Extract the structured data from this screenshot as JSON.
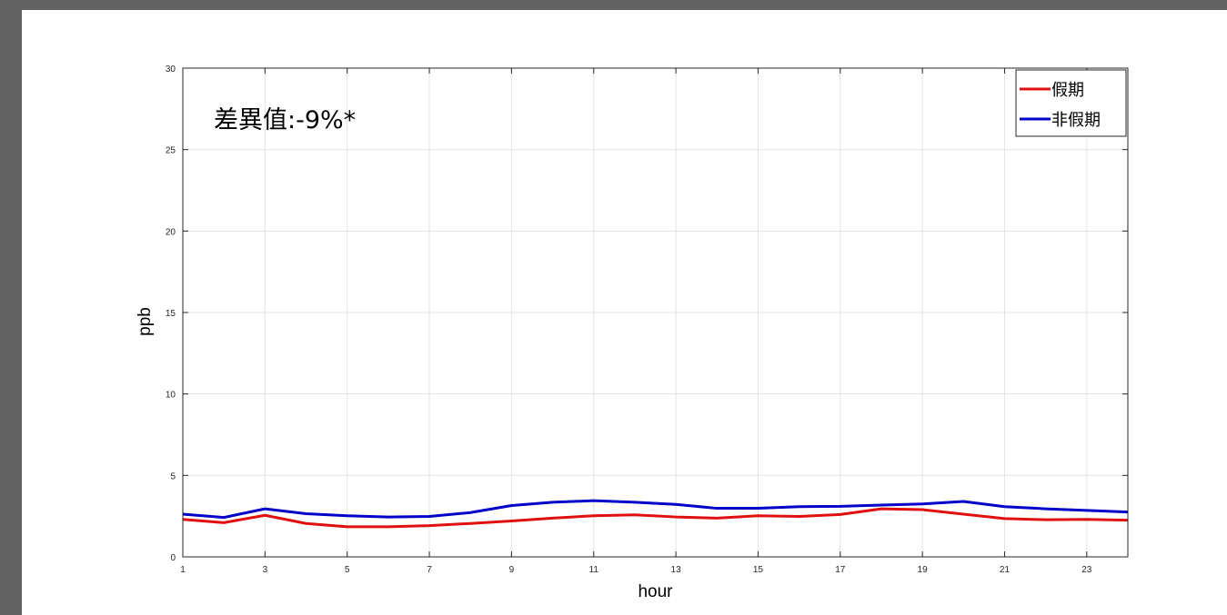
{
  "chart_data": {
    "type": "line",
    "x": [
      1,
      2,
      3,
      4,
      5,
      6,
      7,
      8,
      9,
      10,
      11,
      12,
      13,
      14,
      15,
      16,
      17,
      18,
      19,
      20,
      21,
      22,
      23,
      24
    ],
    "series": [
      {
        "name": "假期",
        "color": "#e01010",
        "values": [
          2.3,
          2.1,
          2.55,
          2.05,
          1.85,
          1.85,
          1.92,
          2.05,
          2.2,
          2.38,
          2.52,
          2.58,
          2.45,
          2.38,
          2.52,
          2.48,
          2.6,
          2.95,
          2.9,
          2.62,
          2.35,
          2.28,
          2.3,
          2.25
        ]
      },
      {
        "name": "非假期",
        "color": "#0000c8",
        "values": [
          2.62,
          2.42,
          2.95,
          2.65,
          2.52,
          2.45,
          2.48,
          2.72,
          3.15,
          3.35,
          3.45,
          3.35,
          3.22,
          2.98,
          2.98,
          3.08,
          3.1,
          3.18,
          3.25,
          3.4,
          3.08,
          2.95,
          2.85,
          2.75
        ]
      }
    ],
    "xlabel": "hour",
    "ylabel": "ppb",
    "xlim": [
      1,
      24
    ],
    "ylim": [
      0,
      30
    ],
    "xticks": [
      1,
      3,
      5,
      7,
      9,
      11,
      13,
      15,
      17,
      19,
      21,
      23
    ],
    "yticks": [
      0,
      5,
      10,
      15,
      20,
      25,
      30
    ],
    "grid": true,
    "legend_position": "top-right",
    "annotation": "差異值:-9%*"
  }
}
